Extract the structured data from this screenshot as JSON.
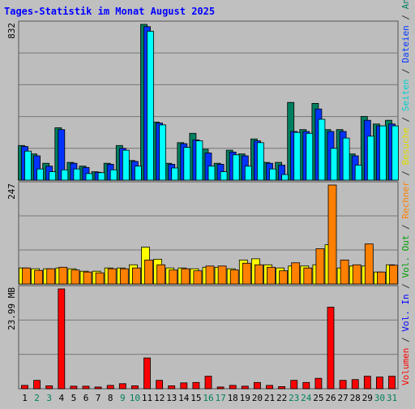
{
  "chart_data": {
    "type": "bar",
    "title": "Tages-Statistik im Monat August 2025",
    "x": [
      "1",
      "2",
      "3",
      "4",
      "5",
      "6",
      "7",
      "8",
      "9",
      "10",
      "11",
      "12",
      "13",
      "14",
      "15",
      "16",
      "17",
      "18",
      "19",
      "20",
      "21",
      "22",
      "23",
      "24",
      "25",
      "26",
      "27",
      "28",
      "29",
      "30",
      "31"
    ],
    "weekend_days": [
      "2",
      "3",
      "9",
      "10",
      "16",
      "17",
      "23",
      "24",
      "30",
      "31"
    ],
    "panels": [
      {
        "name": "top",
        "ymax_label": "832",
        "ymax": 832,
        "series": [
          {
            "name": "Anfragen",
            "color": "#007f5f",
            "values": [
              185,
              140,
              90,
              280,
              95,
              75,
              45,
              90,
              185,
              105,
              832,
              310,
              90,
              200,
              250,
              165,
              90,
              160,
              140,
              220,
              95,
              95,
              415,
              270,
              410,
              270,
              270,
              140,
              340,
              300,
              320
            ]
          },
          {
            "name": "Dateien",
            "color": "#0033ff",
            "values": [
              180,
              130,
              75,
              270,
              90,
              68,
              42,
              85,
              170,
              100,
              820,
              305,
              85,
              195,
              215,
              145,
              85,
              150,
              130,
              210,
              90,
              80,
              260,
              260,
              380,
              260,
              260,
              130,
              320,
              290,
              300
            ]
          },
          {
            "name": "Seiten",
            "color": "#00ffff",
            "values": [
              155,
              60,
              45,
              55,
              60,
              35,
              40,
              55,
              160,
              75,
              795,
              295,
              65,
              175,
              210,
              75,
              45,
              135,
              75,
              200,
              60,
              30,
              255,
              250,
              325,
              170,
              225,
              80,
              235,
              290,
              290
            ]
          }
        ]
      },
      {
        "name": "middle",
        "ymax_label": "247",
        "ymax": 247,
        "series": [
          {
            "name": "Besuche",
            "color": "#ffff00",
            "values": [
              40,
              38,
              38,
              40,
              38,
              32,
              32,
              40,
              40,
              48,
              92,
              62,
              40,
              40,
              38,
              42,
              42,
              38,
              60,
              63,
              48,
              40,
              45,
              45,
              48,
              98,
              40,
              45,
              45,
              30,
              48
            ]
          },
          {
            "name": "Rechner",
            "color": "#ff8000",
            "values": [
              40,
              34,
              38,
              42,
              35,
              30,
              28,
              38,
              38,
              40,
              60,
              48,
              35,
              38,
              33,
              45,
              45,
              35,
              52,
              48,
              42,
              33,
              53,
              40,
              88,
              247,
              60,
              48,
              100,
              30,
              47
            ]
          }
        ]
      },
      {
        "name": "bottom",
        "ymax_label": "23.99 MB",
        "ymax": 23.99,
        "series": [
          {
            "name": "Vol. In",
            "color": "#0000ff",
            "values": []
          },
          {
            "name": "Vol. Out",
            "color": "#00ff00",
            "values": []
          },
          {
            "name": "Volumen",
            "color": "#ff0000",
            "values": [
              0.8,
              2.0,
              0.7,
              23.99,
              0.6,
              0.6,
              0.4,
              0.8,
              1.2,
              0.7,
              7.4,
              2.0,
              0.7,
              1.4,
              1.5,
              3.0,
              0.4,
              0.8,
              0.6,
              1.5,
              0.8,
              0.5,
              2.0,
              1.5,
              2.5,
              19.6,
              2.0,
              2.2,
              3.0,
              2.8,
              3.0
            ]
          }
        ]
      }
    ],
    "right_legend": [
      {
        "text": "Volumen",
        "color": "#ff0000"
      },
      {
        "text": " / ",
        "color": "#333333"
      },
      {
        "text": "Vol. In",
        "color": "#0000ff"
      },
      {
        "text": " / ",
        "color": "#333333"
      },
      {
        "text": "Vol. Out",
        "color": "#00a000"
      },
      {
        "text": " / ",
        "color": "#333333"
      },
      {
        "text": "Rechner",
        "color": "#ff8000"
      },
      {
        "text": " / ",
        "color": "#333333"
      },
      {
        "text": "Besuche",
        "color": "#e0e000"
      },
      {
        "text": " / ",
        "color": "#333333"
      },
      {
        "text": "Seiten",
        "color": "#00d0d0"
      },
      {
        "text": " / ",
        "color": "#333333"
      },
      {
        "text": "Dateien",
        "color": "#0033ff"
      },
      {
        "text": " / ",
        "color": "#333333"
      },
      {
        "text": "Anfragen",
        "color": "#007f5f"
      }
    ],
    "colors": {
      "background": "#c0c0c0",
      "title": "#0000ff",
      "weekday_tick": "#000000",
      "weekend_tick": "#00805f",
      "gridline": "#777777"
    }
  }
}
